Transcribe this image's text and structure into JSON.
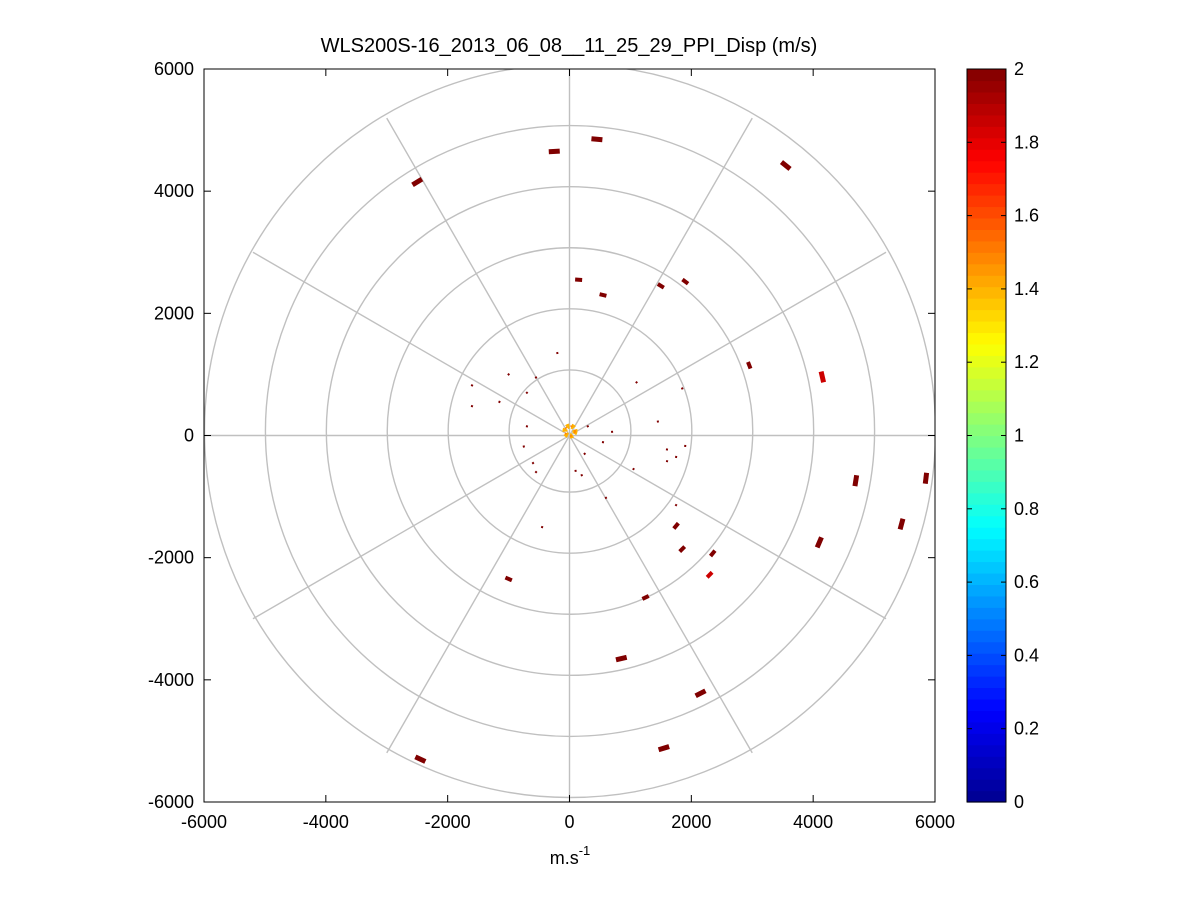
{
  "chart_data": {
    "type": "scatter",
    "subtype": "polar-ppi",
    "title": "WLS200S-16_2013_06_08__11_25_29_PPI_Disp (m/s)",
    "xlabel_base": "m.s",
    "xlabel_exponent": "-1",
    "ylabel": "",
    "xlim": [
      -6000,
      6000
    ],
    "ylim": [
      -6000,
      6000
    ],
    "xticks": [
      -6000,
      -4000,
      -2000,
      0,
      2000,
      4000,
      6000
    ],
    "yticks": [
      -6000,
      -4000,
      -2000,
      0,
      2000,
      4000,
      6000
    ],
    "xtick_labels": [
      "-6000",
      "-4000",
      "-2000",
      "0",
      "2000",
      "4000",
      "6000"
    ],
    "ytick_labels": [
      "-6000",
      "-4000",
      "-2000",
      "0",
      "2000",
      "4000",
      "6000"
    ],
    "polar_rings": [
      1000,
      2000,
      3000,
      4000,
      5000,
      6000
    ],
    "polar_spoke_step_deg": 30,
    "grid": true,
    "colorbar": {
      "min": 0,
      "max": 2,
      "ticks": [
        0,
        0.2,
        0.4,
        0.6,
        0.8,
        1,
        1.2,
        1.4,
        1.6,
        1.8,
        2
      ],
      "tick_labels": [
        "0",
        "0.2",
        "0.4",
        "0.6",
        "0.8",
        "1",
        "1.2",
        "1.4",
        "1.6",
        "1.8",
        "2"
      ],
      "colormap": "jet",
      "levels": 64,
      "jet_stops": [
        {
          "t": 0.0,
          "color": "#00008f"
        },
        {
          "t": 0.125,
          "color": "#0000ff"
        },
        {
          "t": 0.375,
          "color": "#00ffff"
        },
        {
          "t": 0.625,
          "color": "#ffff00"
        },
        {
          "t": 0.875,
          "color": "#ff0000"
        },
        {
          "t": 1.0,
          "color": "#800000"
        }
      ]
    },
    "points": [
      {
        "x": -2500,
        "y": 4150,
        "v": 2,
        "size": "L"
      },
      {
        "x": -250,
        "y": 4650,
        "v": 2,
        "size": "L"
      },
      {
        "x": 450,
        "y": 4850,
        "v": 2,
        "size": "L"
      },
      {
        "x": 3550,
        "y": 4420,
        "v": 2,
        "size": "L"
      },
      {
        "x": 150,
        "y": 2550,
        "v": 2,
        "size": "M"
      },
      {
        "x": 550,
        "y": 2300,
        "v": 2,
        "size": "M"
      },
      {
        "x": 1500,
        "y": 2450,
        "v": 2,
        "size": "M"
      },
      {
        "x": 1900,
        "y": 2520,
        "v": 2,
        "size": "M"
      },
      {
        "x": 2950,
        "y": 1150,
        "v": 2,
        "size": "M"
      },
      {
        "x": 4150,
        "y": 960,
        "v": 1.85,
        "size": "L"
      },
      {
        "x": 5850,
        "y": -700,
        "v": 2,
        "size": "L"
      },
      {
        "x": 4700,
        "y": -740,
        "v": 2,
        "size": "L"
      },
      {
        "x": 5450,
        "y": -1450,
        "v": 2,
        "size": "L"
      },
      {
        "x": 4100,
        "y": -1750,
        "v": 2,
        "size": "L"
      },
      {
        "x": 2350,
        "y": -1930,
        "v": 2,
        "size": "M"
      },
      {
        "x": 1850,
        "y": -1860,
        "v": 2,
        "size": "M"
      },
      {
        "x": 2300,
        "y": -2280,
        "v": 1.85,
        "size": "M"
      },
      {
        "x": 1750,
        "y": -1480,
        "v": 2,
        "size": "M"
      },
      {
        "x": 1750,
        "y": -1140,
        "v": 2,
        "size": "S"
      },
      {
        "x": 1250,
        "y": -2650,
        "v": 2,
        "size": "M"
      },
      {
        "x": 850,
        "y": -3650,
        "v": 2,
        "size": "L"
      },
      {
        "x": 2150,
        "y": -4220,
        "v": 2,
        "size": "L"
      },
      {
        "x": 1550,
        "y": -5120,
        "v": 2,
        "size": "L"
      },
      {
        "x": -2450,
        "y": -5300,
        "v": 2,
        "size": "L"
      },
      {
        "x": -1000,
        "y": -2350,
        "v": 2,
        "size": "M"
      },
      {
        "x": -450,
        "y": -1500,
        "v": 2,
        "size": "S"
      },
      {
        "x": -200,
        "y": 1350,
        "v": 2,
        "size": "S"
      },
      {
        "x": -1600,
        "y": 820,
        "v": 2,
        "size": "S"
      },
      {
        "x": -1600,
        "y": 480,
        "v": 2,
        "size": "S"
      },
      {
        "x": -1000,
        "y": 1000,
        "v": 2,
        "size": "S"
      },
      {
        "x": -550,
        "y": 950,
        "v": 2,
        "size": "S"
      },
      {
        "x": -700,
        "y": 700,
        "v": 2,
        "size": "S"
      },
      {
        "x": -1150,
        "y": 550,
        "v": 2,
        "size": "S"
      },
      {
        "x": 1100,
        "y": 870,
        "v": 2,
        "size": "S"
      },
      {
        "x": 1850,
        "y": 770,
        "v": 2,
        "size": "S"
      },
      {
        "x": 1450,
        "y": 230,
        "v": 2,
        "size": "S"
      },
      {
        "x": 700,
        "y": 60,
        "v": 2,
        "size": "S"
      },
      {
        "x": 550,
        "y": -110,
        "v": 2,
        "size": "S"
      },
      {
        "x": 1600,
        "y": -230,
        "v": 2,
        "size": "S"
      },
      {
        "x": 1900,
        "y": -170,
        "v": 2,
        "size": "S"
      },
      {
        "x": 1750,
        "y": -350,
        "v": 2,
        "size": "S"
      },
      {
        "x": 1600,
        "y": -420,
        "v": 2,
        "size": "S"
      },
      {
        "x": 1050,
        "y": -550,
        "v": 2,
        "size": "S"
      },
      {
        "x": -700,
        "y": 150,
        "v": 2,
        "size": "S"
      },
      {
        "x": -750,
        "y": -180,
        "v": 2,
        "size": "S"
      },
      {
        "x": -600,
        "y": -450,
        "v": 2,
        "size": "S"
      },
      {
        "x": -550,
        "y": -600,
        "v": 2,
        "size": "S"
      },
      {
        "x": 100,
        "y": -580,
        "v": 2,
        "size": "S"
      },
      {
        "x": 200,
        "y": -650,
        "v": 2,
        "size": "S"
      },
      {
        "x": 600,
        "y": -1020,
        "v": 2,
        "size": "S"
      },
      {
        "x": 300,
        "y": 150,
        "v": 2,
        "size": "S"
      },
      {
        "x": 250,
        "y": -300,
        "v": 2,
        "size": "S"
      }
    ],
    "center_ring": {
      "radius": 150,
      "v": 1.4
    }
  }
}
